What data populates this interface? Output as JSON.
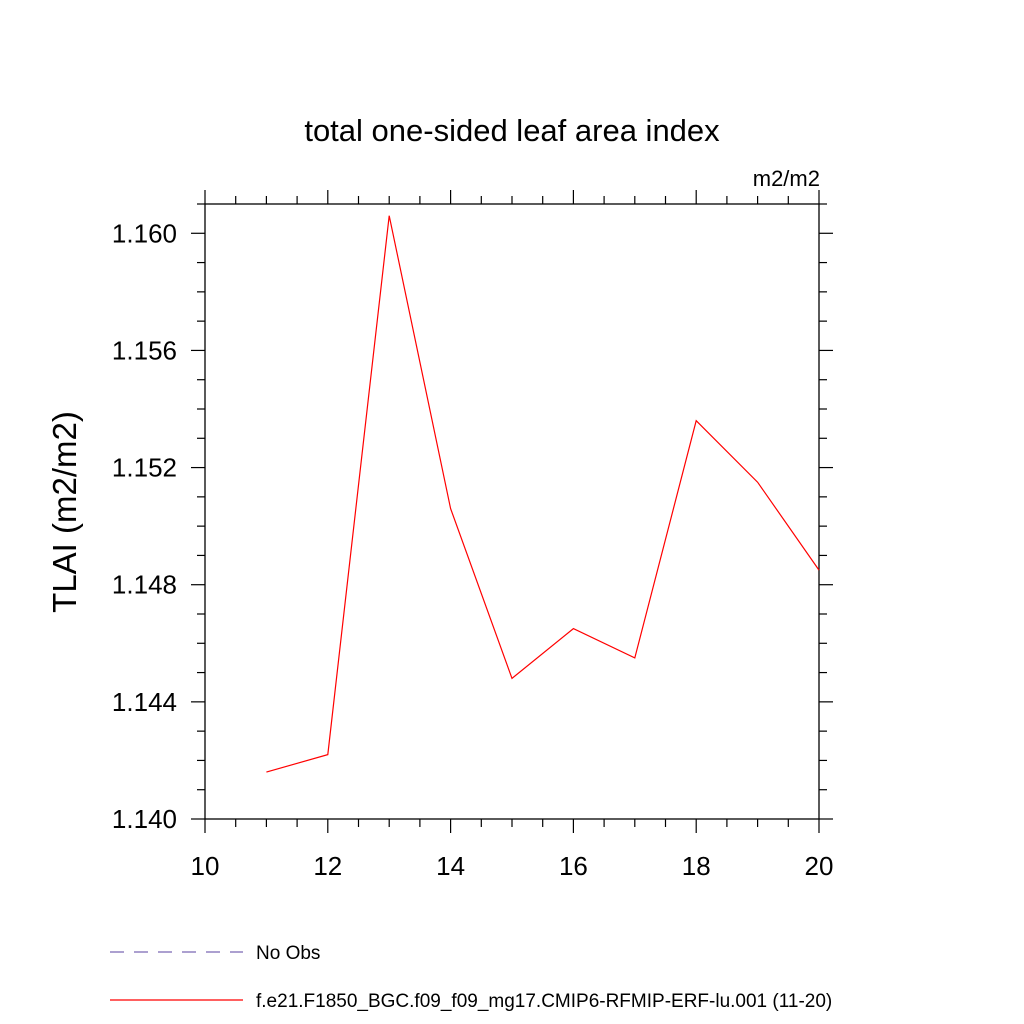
{
  "chart_data": {
    "type": "line",
    "title": "total one-sided leaf area index",
    "units_label": "m2/m2",
    "ylabel": "TLAI  (m2/m2)",
    "xlabel": "",
    "xlim": [
      10,
      20
    ],
    "ylim": [
      1.14,
      1.161
    ],
    "x_ticks": [
      10,
      12,
      14,
      16,
      18,
      20
    ],
    "x_tick_labels": [
      "10",
      "12",
      "14",
      "16",
      "18",
      "20"
    ],
    "y_ticks": [
      1.14,
      1.144,
      1.148,
      1.152,
      1.156,
      1.16
    ],
    "y_tick_labels": [
      "1.140",
      "1.144",
      "1.148",
      "1.152",
      "1.156",
      "1.160"
    ],
    "grid": false,
    "legend_position": "bottom",
    "series": [
      {
        "name": "f.e21.F1850_BGC.f09_f09_mg17.CMIP6-RFMIP-ERF-lu.001 (11-20)",
        "color": "#ff0000",
        "dash": "solid",
        "x": [
          11,
          12,
          13,
          14,
          15,
          16,
          17,
          18,
          19,
          20
        ],
        "values": [
          1.1416,
          1.1422,
          1.1606,
          1.1506,
          1.1448,
          1.1465,
          1.1455,
          1.1536,
          1.1515,
          1.1485
        ]
      }
    ],
    "legend": [
      {
        "label": "No Obs",
        "color": "#7b68b5",
        "dash": "dashed"
      },
      {
        "label": "f.e21.F1850_BGC.f09_f09_mg17.CMIP6-RFMIP-ERF-lu.001 (11-20)",
        "color": "#ff0000",
        "dash": "solid"
      }
    ]
  }
}
